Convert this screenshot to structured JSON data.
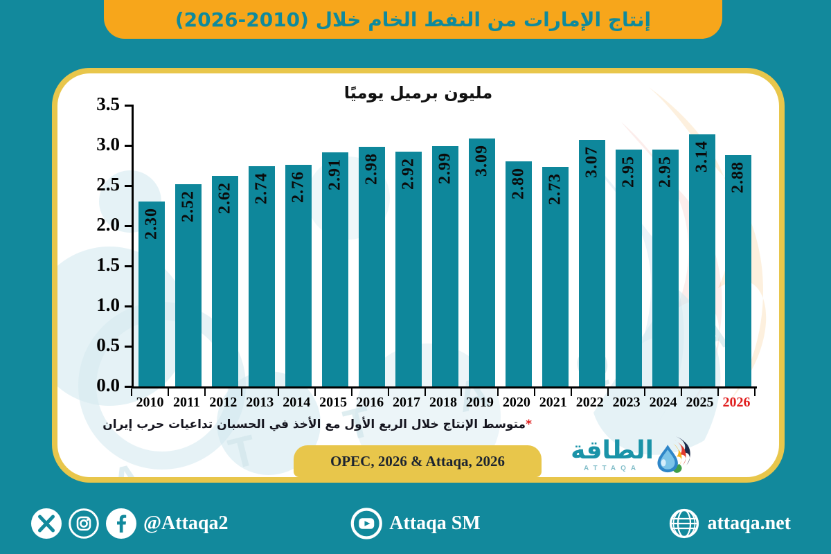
{
  "banner": {
    "title": "إنتاج الإمارات من النفط الخام خلال (2010-2026)"
  },
  "chart_data": {
    "type": "bar",
    "title": "مليون برميل يوميًا",
    "categories": [
      "2010",
      "2011",
      "2012",
      "2013",
      "2014",
      "2015",
      "2016",
      "2017",
      "2018",
      "2019",
      "2020",
      "2021",
      "2022",
      "2023",
      "2024",
      "2025",
      "2026"
    ],
    "values": [
      2.3,
      2.52,
      2.62,
      2.74,
      2.76,
      2.91,
      2.98,
      2.92,
      2.99,
      3.09,
      2.8,
      2.73,
      3.07,
      2.95,
      2.95,
      3.14,
      2.88
    ],
    "value_labels": [
      "2.30",
      "2.52",
      "2.62",
      "2.74",
      "2.76",
      "2.91",
      "2.98",
      "2.92",
      "2.99",
      "3.09",
      "2.80",
      "2.73",
      "3.07",
      "2.95",
      "2.95",
      "3.14",
      "2.88"
    ],
    "ylim": [
      0,
      3.5
    ],
    "yticks": [
      "3.5",
      "3.0",
      "2.5",
      "2.0",
      "1.5",
      "1.0",
      "0.5",
      "0.0"
    ],
    "xlabel": "",
    "ylabel": "",
    "grid": false,
    "legend": null,
    "bar_color": "#0e879b",
    "highlight_category": "2026",
    "highlight_color": "#e01f1f"
  },
  "footnote": {
    "asterisk": "*",
    "text": "متوسط الإنتاج خلال الربع الأول مع الأخذ في الحسبان تداعيات حرب إيران"
  },
  "source_badge": {
    "label": "OPEC, 2026 & Attaqa, 2026"
  },
  "logo": {
    "arabic": "الطاقة",
    "latin": "ATTAQA"
  },
  "footer": {
    "social_handle": "@Attaqa2",
    "youtube_label": "Attaqa SM",
    "website": "attaqa.net"
  },
  "watermark": {
    "letters": "A T T A Q A"
  },
  "colors": {
    "background": "#12899c",
    "banner": "#f7a61b",
    "gold": "#e8c64b",
    "bar": "#0e879b",
    "banner_title": "#0f8a9c",
    "highlight_red": "#e01f1f"
  }
}
